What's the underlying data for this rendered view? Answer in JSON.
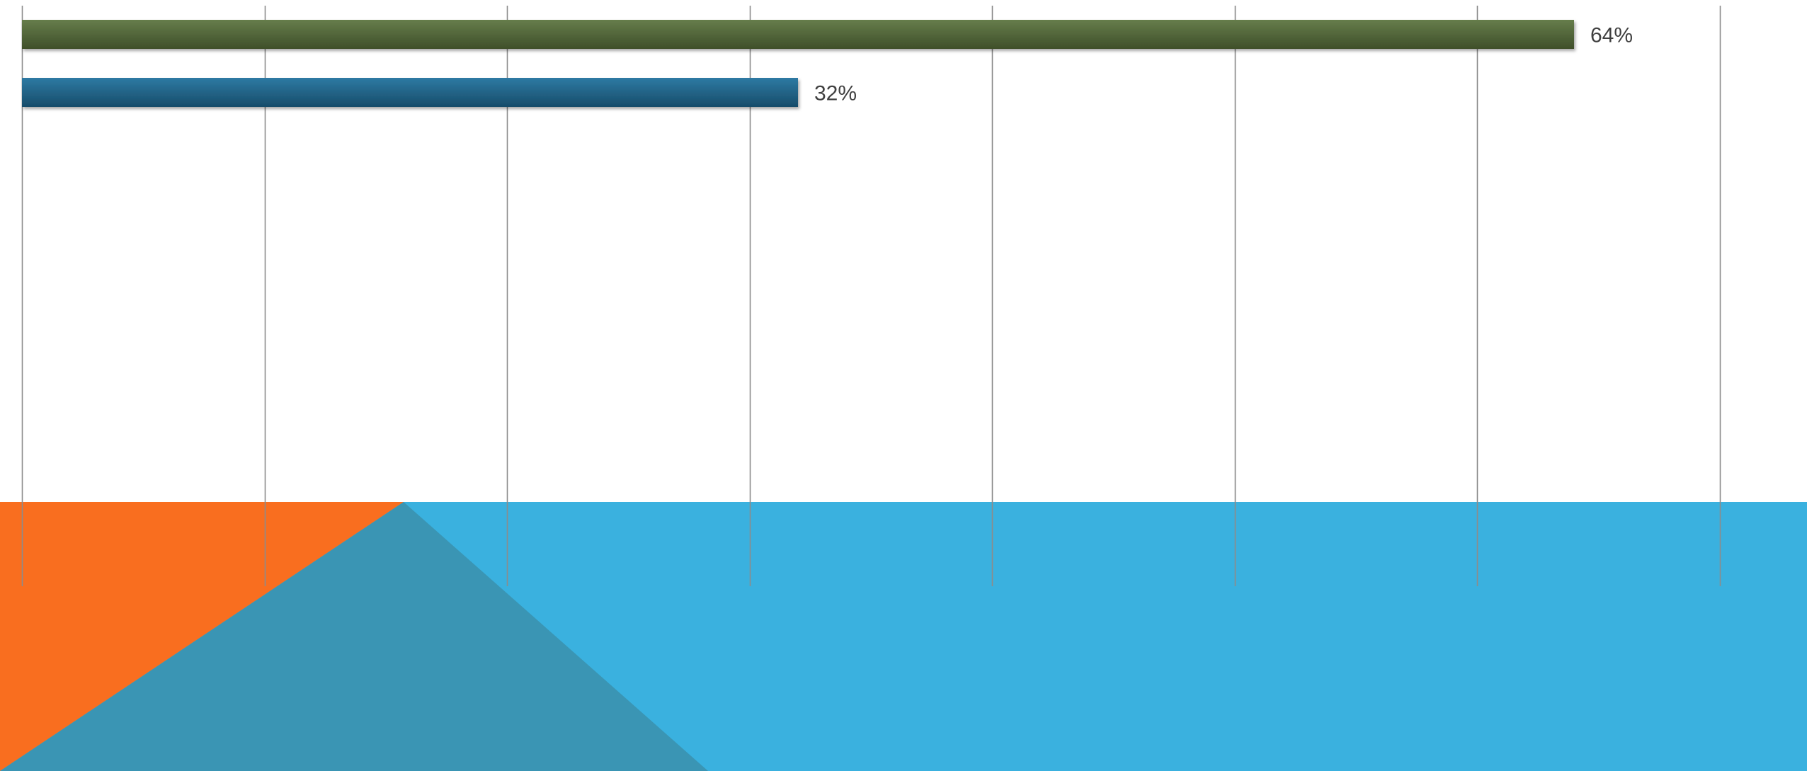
{
  "theme": {
    "orange": "#f96e1f",
    "sky_blue": "#3ab1df",
    "steel_blue": "#3a95b4",
    "gridline": "#8c8c8c",
    "label": "#404040"
  },
  "chart_data": {
    "type": "bar",
    "orientation": "horizontal",
    "title": "",
    "xlabel": "",
    "ylabel": "",
    "grid": true,
    "xlim": [
      0,
      70
    ],
    "categories": [
      "",
      ""
    ],
    "values": [
      64,
      32
    ],
    "data_labels": [
      "64%",
      "32%"
    ],
    "bar_colors": [
      {
        "top": "#667d4b",
        "bottom": "#3f4f2a"
      },
      {
        "top": "#2e7aa3",
        "bottom": "#174c6a"
      }
    ]
  }
}
